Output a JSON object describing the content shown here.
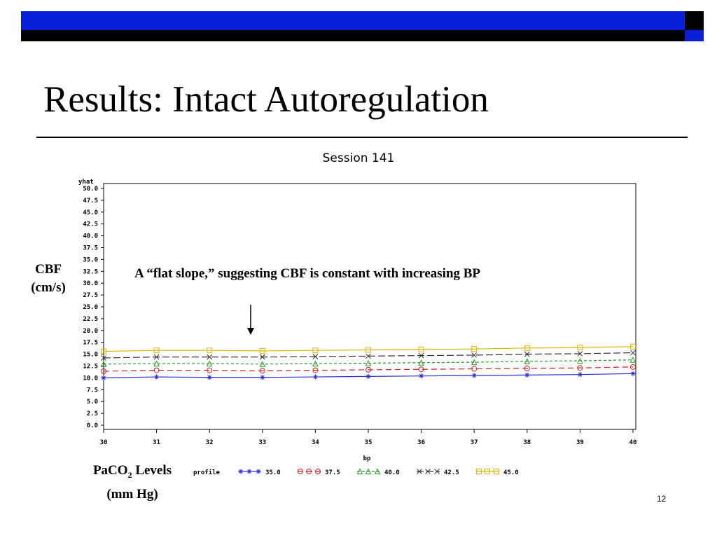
{
  "slide": {
    "title": "Results: Intact Autoregulation",
    "ylabel_line1": "CBF",
    "ylabel_line2": "(cm/s)",
    "annotation": "A “flat slope,” suggesting CBF is constant with increasing BP",
    "legend_title_pre": "PaCO",
    "legend_title_sub": "2",
    "legend_title_post": " Levels",
    "legend_title_line2": "(mm Hg)",
    "page_number": "12"
  },
  "chart_data": {
    "type": "line",
    "title": "Session 141",
    "xlabel": "bp",
    "ylabel": "yhat",
    "xlim": [
      30,
      40
    ],
    "ylim": [
      0,
      50
    ],
    "x": [
      30,
      31,
      32,
      33,
      34,
      35,
      36,
      37,
      38,
      39,
      40
    ],
    "x_ticks": [
      "30",
      "31",
      "32",
      "33",
      "34",
      "35",
      "36",
      "37",
      "38",
      "39",
      "40"
    ],
    "y_ticks": [
      "0.0",
      "2.5",
      "5.0",
      "7.5",
      "10.0",
      "12.5",
      "15.0",
      "17.5",
      "20.0",
      "22.5",
      "25.0",
      "27.5",
      "30.0",
      "32.5",
      "35.0",
      "37.5",
      "40.0",
      "42.5",
      "45.0",
      "47.5",
      "50.0"
    ],
    "legend_label": "profile",
    "series": [
      {
        "name": "35.0",
        "color": "#2a2ad0",
        "marker": "asterisk",
        "dash": "",
        "values": [
          10.0,
          10.2,
          10.1,
          10.1,
          10.2,
          10.3,
          10.4,
          10.5,
          10.6,
          10.7,
          10.9
        ]
      },
      {
        "name": "37.5",
        "color": "#cc2222",
        "marker": "circle",
        "dash": "8,5",
        "values": [
          11.4,
          11.6,
          11.6,
          11.5,
          11.6,
          11.7,
          11.8,
          11.9,
          12.0,
          12.1,
          12.3
        ]
      },
      {
        "name": "40.0",
        "color": "#2a9a2a",
        "marker": "triangle",
        "dash": "4,3",
        "values": [
          12.9,
          13.0,
          13.0,
          12.9,
          13.0,
          13.1,
          13.2,
          13.3,
          13.5,
          13.6,
          13.8
        ]
      },
      {
        "name": "42.5",
        "color": "#333333",
        "marker": "x",
        "dash": "10,4",
        "values": [
          14.2,
          14.4,
          14.4,
          14.4,
          14.5,
          14.6,
          14.7,
          14.8,
          15.0,
          15.1,
          15.3
        ]
      },
      {
        "name": "45.0",
        "color": "#e0b400",
        "marker": "square",
        "dash": "",
        "values": [
          15.6,
          15.8,
          15.8,
          15.7,
          15.8,
          15.9,
          16.0,
          16.1,
          16.3,
          16.4,
          16.6
        ]
      }
    ],
    "grid": false,
    "legend_position": "bottom"
  }
}
